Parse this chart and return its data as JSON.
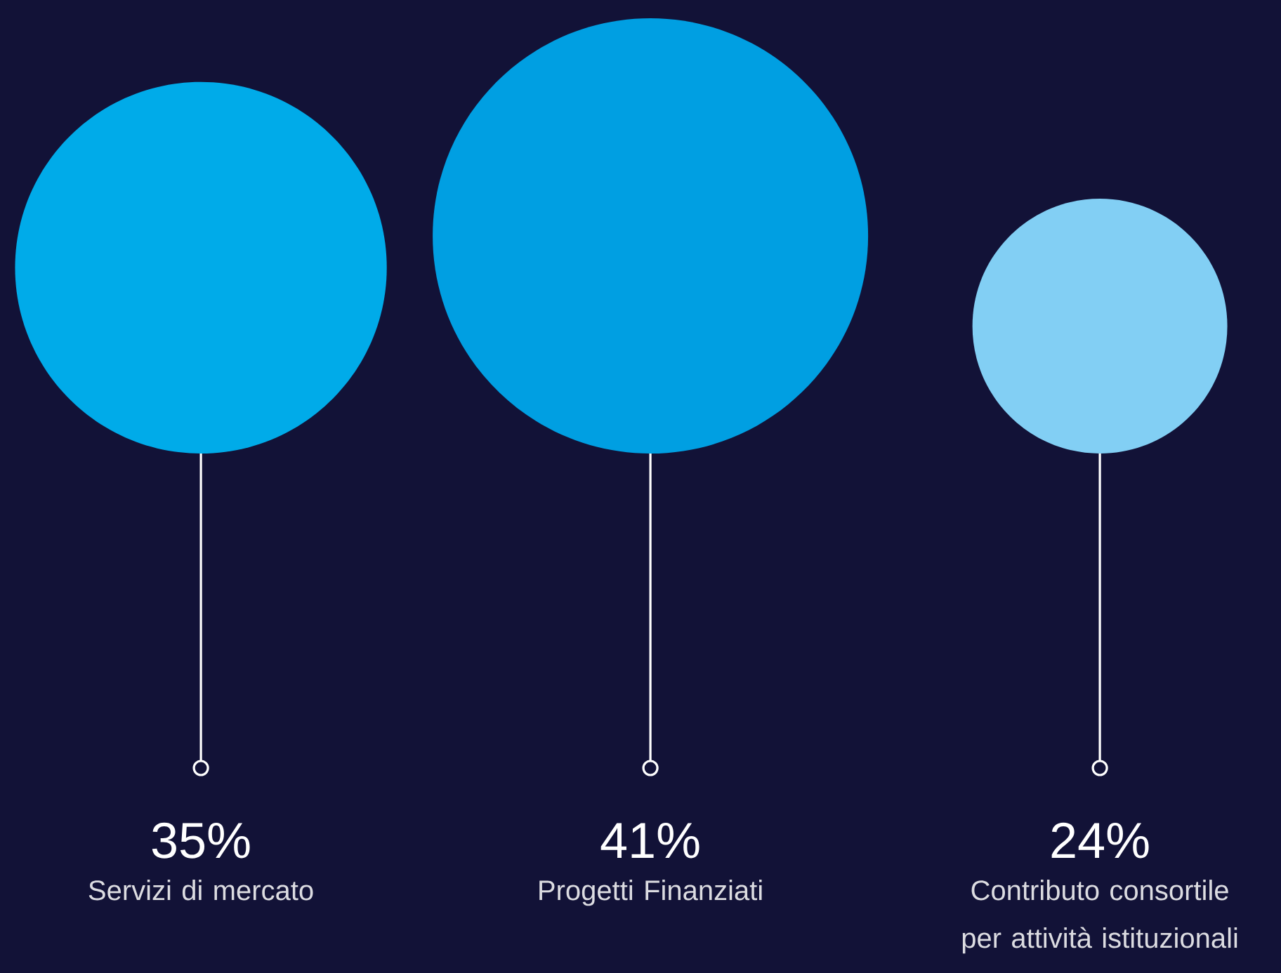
{
  "chart_data": {
    "type": "other",
    "categories": [
      "Servizi di mercato",
      "Progetti Finanziati",
      "Contributo consortile per attività istituzionali"
    ],
    "values": [
      35,
      41,
      24
    ],
    "value_labels": [
      "35%",
      "41%",
      "24%"
    ],
    "colors": [
      "#00abe9",
      "#009fe2",
      "#82cff4"
    ]
  }
}
